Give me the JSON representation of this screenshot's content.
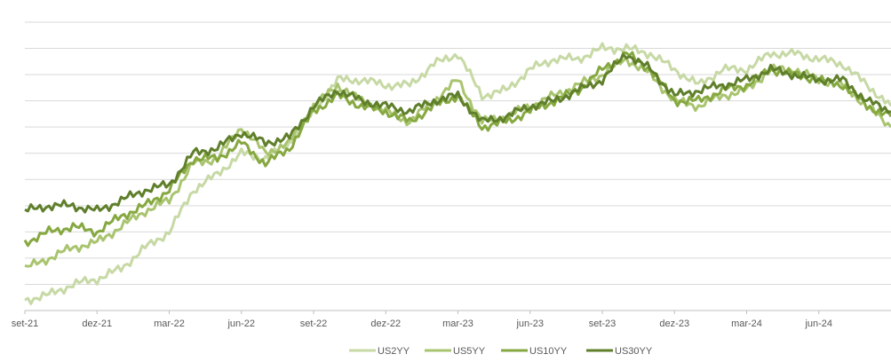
{
  "chart_data": {
    "type": "line",
    "title": "",
    "xlabel": "",
    "ylabel": "",
    "grid": true,
    "legend_position": "bottom",
    "x_ticks": [
      "set-21",
      "dez-21",
      "mar-22",
      "jun-22",
      "set-22",
      "dez-22",
      "mar-23",
      "jun-23",
      "set-23",
      "dez-23",
      "mar-24",
      "jun-24"
    ],
    "x": [
      "set-21",
      "out-21",
      "nov-21",
      "dez-21",
      "jan-22",
      "fev-22",
      "mar-22",
      "abr-22",
      "mai-22",
      "jun-22",
      "jul-22",
      "ago-22",
      "set-22",
      "out-22",
      "nov-22",
      "dez-22",
      "jan-23",
      "fev-23",
      "mar-23",
      "abr-23",
      "mai-23",
      "jun-23",
      "jul-23",
      "ago-23",
      "set-23",
      "out-23",
      "nov-23",
      "dez-23",
      "jan-24",
      "fev-24",
      "mar-24",
      "abr-24",
      "mai-24",
      "jun-24",
      "jul-24",
      "ago-24",
      "set-24"
    ],
    "series": [
      {
        "name": "US2YY",
        "color": "#c7d9a5",
        "values": [
          0.2,
          0.3,
          0.5,
          0.6,
          0.8,
          1.2,
          1.5,
          2.3,
          2.6,
          3.0,
          2.9,
          3.2,
          3.8,
          4.4,
          4.4,
          4.3,
          4.3,
          4.7,
          4.9,
          4.1,
          4.2,
          4.6,
          4.8,
          4.8,
          5.0,
          5.0,
          4.9,
          4.6,
          4.3,
          4.6,
          4.6,
          4.9,
          4.9,
          4.8,
          4.7,
          4.3,
          3.9
        ]
      },
      {
        "name": "US5YY",
        "color": "#a9c46f",
        "values": [
          0.8,
          1.0,
          1.2,
          1.3,
          1.6,
          1.9,
          2.1,
          2.8,
          2.9,
          3.5,
          3.0,
          3.2,
          3.9,
          4.3,
          4.0,
          3.8,
          3.6,
          4.0,
          4.4,
          3.6,
          3.7,
          3.9,
          4.1,
          4.3,
          4.5,
          4.8,
          4.5,
          4.0,
          3.9,
          4.1,
          4.2,
          4.6,
          4.6,
          4.4,
          4.3,
          3.9,
          3.5
        ]
      },
      {
        "name": "US10YY",
        "color": "#86a840",
        "values": [
          1.3,
          1.5,
          1.6,
          1.5,
          1.8,
          2.0,
          2.3,
          2.9,
          2.9,
          3.2,
          2.8,
          3.1,
          3.8,
          4.1,
          3.9,
          3.8,
          3.6,
          3.9,
          4.1,
          3.5,
          3.6,
          3.8,
          4.0,
          4.2,
          4.6,
          4.9,
          4.6,
          4.0,
          4.0,
          4.2,
          4.3,
          4.6,
          4.5,
          4.4,
          4.3,
          3.9,
          3.7
        ]
      },
      {
        "name": "US30YY",
        "color": "#5f7f2b",
        "values": [
          1.9,
          2.0,
          2.0,
          1.9,
          2.1,
          2.3,
          2.4,
          3.0,
          3.1,
          3.4,
          3.2,
          3.3,
          3.9,
          4.2,
          4.0,
          3.9,
          3.8,
          4.0,
          4.1,
          3.6,
          3.7,
          3.9,
          4.0,
          4.2,
          4.4,
          4.9,
          4.6,
          4.1,
          4.2,
          4.3,
          4.4,
          4.6,
          4.5,
          4.4,
          4.4,
          4.0,
          3.8
        ]
      }
    ],
    "ylim": [
      0,
      5.5
    ],
    "y_gridlines": 11
  }
}
